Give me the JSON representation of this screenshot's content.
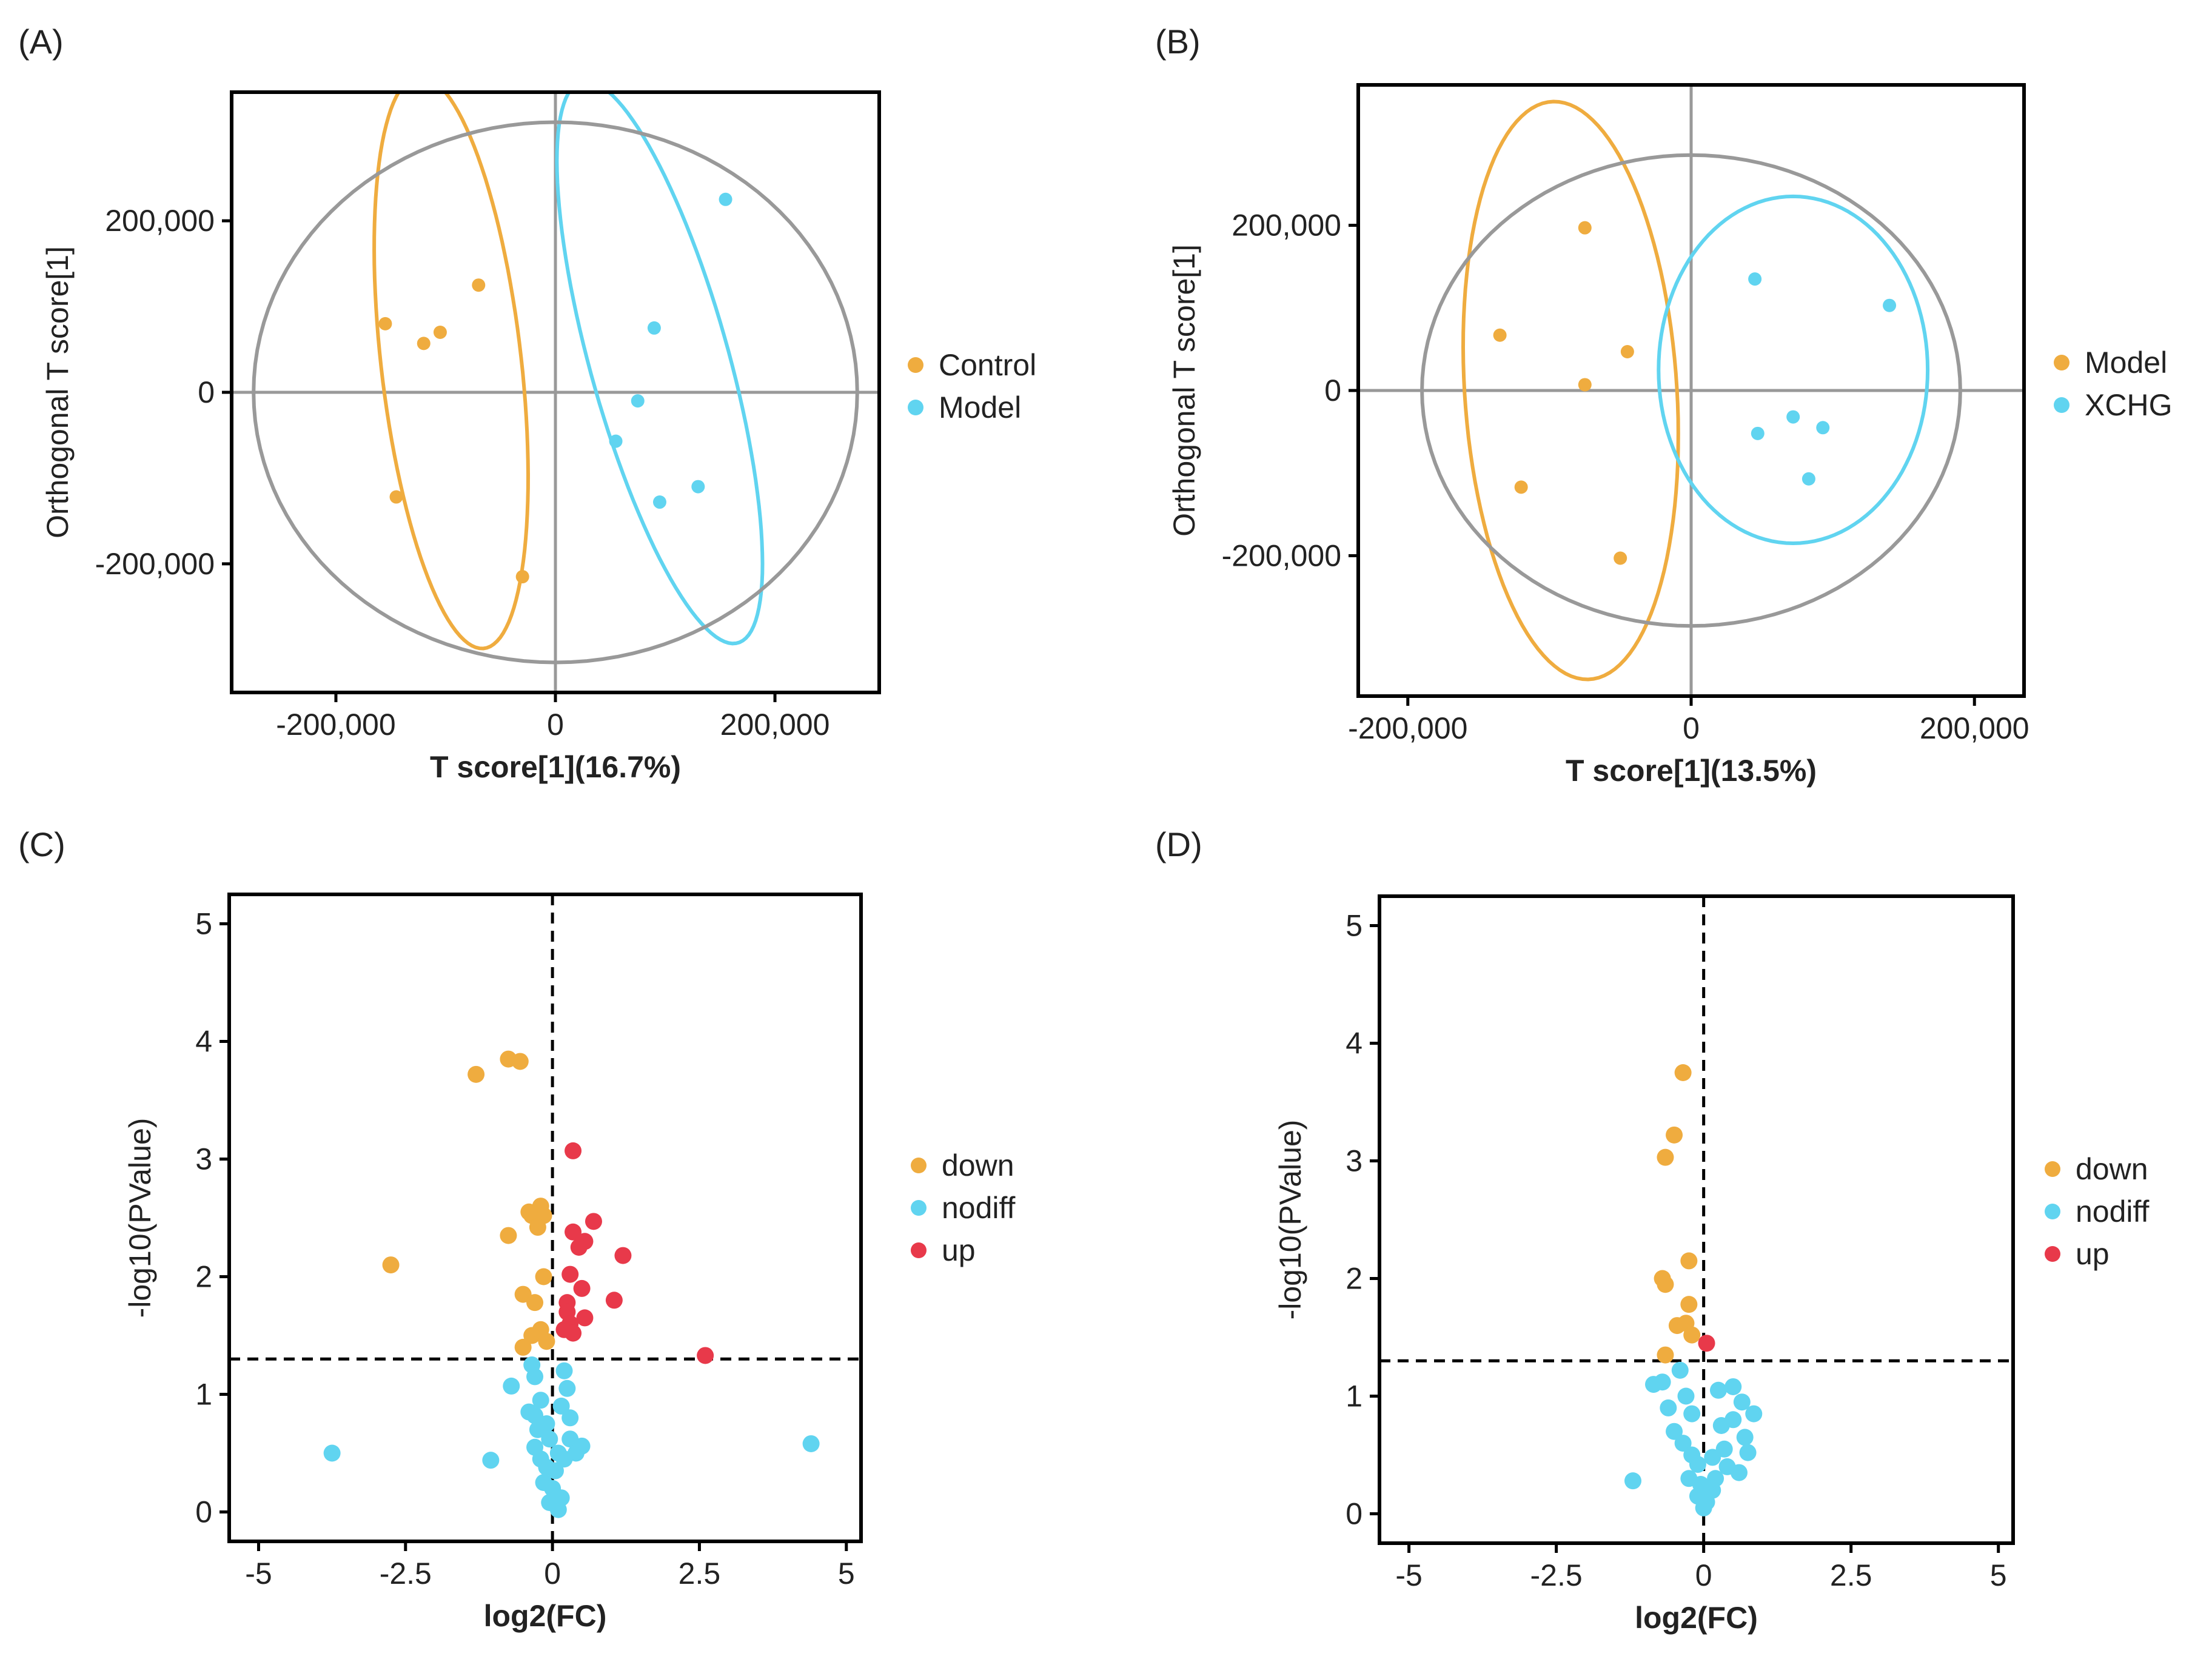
{
  "colors": {
    "orange": "#EFAC3F",
    "cyan": "#60D4F0",
    "red": "#E8394A",
    "gray": "#999999",
    "black": "#000000"
  },
  "chart_data": [
    {
      "panel": "(A)",
      "type": "scatter",
      "xlabel": "T score[1](16.7%)",
      "ylabel": "Orthogonal T score[1]",
      "xlim": [
        -295000,
        295000
      ],
      "ylim": [
        -350000,
        350000
      ],
      "xticks": [
        -200000,
        0,
        200000
      ],
      "xtick_labels": [
        "-200,000",
        "0",
        "200,000"
      ],
      "yticks": [
        -200000,
        0,
        200000
      ],
      "ytick_labels": [
        "-200,000",
        "0",
        "200,000"
      ],
      "legend": [
        "Control",
        "Model"
      ],
      "legend_position": "right",
      "series": [
        {
          "name": "Control",
          "color": "#EFAC3F",
          "points": [
            [
              -155000,
              80000
            ],
            [
              -120000,
              57000
            ],
            [
              -105000,
              70000
            ],
            [
              -70000,
              125000
            ],
            [
              -145000,
              -122000
            ],
            [
              -30000,
              -215000
            ]
          ]
        },
        {
          "name": "Model",
          "color": "#60D4F0",
          "points": [
            [
              155000,
              225000
            ],
            [
              90000,
              75000
            ],
            [
              75000,
              -10000
            ],
            [
              55000,
              -57000
            ],
            [
              95000,
              -128000
            ],
            [
              130000,
              -110000
            ]
          ]
        }
      ],
      "ellipses": [
        {
          "group": "Control",
          "color": "#EFAC3F",
          "cx": -95000,
          "cy": 35000,
          "rx": 335000,
          "ry": 64000,
          "angle": -85
        },
        {
          "group": "Model",
          "color": "#60D4F0",
          "cx": 95000,
          "cy": 35000,
          "rx": 335000,
          "ry": 64000,
          "angle": -78
        },
        {
          "group": "Hotelling T2",
          "color": "#999999",
          "cx": 0,
          "cy": 0,
          "rx": 275000,
          "ry": 315000,
          "angle": 0
        }
      ]
    },
    {
      "panel": "(B)",
      "type": "scatter",
      "xlabel": "T score[1](13.5%)",
      "ylabel": "Orthogonal T score[1]",
      "xlim": [
        -235000,
        235000
      ],
      "ylim": [
        -370000,
        370000
      ],
      "xticks": [
        -200000,
        0,
        200000
      ],
      "xtick_labels": [
        "-200,000",
        "0",
        "200,000"
      ],
      "yticks": [
        -200000,
        0,
        200000
      ],
      "ytick_labels": [
        "-200,000",
        "0",
        "200,000"
      ],
      "legend": [
        "Model",
        "XCHG"
      ],
      "legend_position": "right",
      "series": [
        {
          "name": "Model",
          "color": "#EFAC3F",
          "points": [
            [
              -75000,
              197000
            ],
            [
              -135000,
              67000
            ],
            [
              -45000,
              47000
            ],
            [
              -75000,
              7000
            ],
            [
              -120000,
              -117000
            ],
            [
              -50000,
              -203000
            ]
          ]
        },
        {
          "name": "XCHG",
          "color": "#60D4F0",
          "points": [
            [
              45000,
              135000
            ],
            [
              140000,
              103000
            ],
            [
              47000,
              -52000
            ],
            [
              72000,
              -32000
            ],
            [
              93000,
              -45000
            ],
            [
              83000,
              -107000
            ]
          ]
        }
      ],
      "ellipses": [
        {
          "group": "Model",
          "color": "#EFAC3F",
          "cx": -85000,
          "cy": 0,
          "rx": 350000,
          "ry": 75000,
          "angle": -88
        },
        {
          "group": "XCHG",
          "color": "#60D4F0",
          "cx": 72000,
          "cy": 25000,
          "rx": 95000,
          "ry": 210000,
          "angle": 0
        },
        {
          "group": "Hotelling T2",
          "color": "#999999",
          "cx": 0,
          "cy": 0,
          "rx": 190000,
          "ry": 285000,
          "angle": 0
        }
      ]
    },
    {
      "panel": "(C)",
      "type": "scatter",
      "xlabel": "log2(FC)",
      "ylabel": "-log10(PValue)",
      "xlim": [
        -5.5,
        5.25
      ],
      "ylim": [
        -0.25,
        5.25
      ],
      "xticks": [
        -5,
        -2.5,
        0,
        2.5,
        5
      ],
      "xtick_labels": [
        "-5",
        "-2.5",
        "0",
        "2.5",
        "5"
      ],
      "yticks": [
        0,
        1,
        2,
        3,
        4,
        5
      ],
      "ytick_labels": [
        "0",
        "1",
        "2",
        "3",
        "4",
        "5"
      ],
      "threshold_y": 1.3,
      "threshold_x": 0,
      "legend": [
        "down",
        "nodiff",
        "up"
      ],
      "legend_position": "right",
      "series": [
        {
          "name": "down",
          "color": "#EFAC3F",
          "points": [
            [
              -0.75,
              3.85
            ],
            [
              -0.55,
              3.83
            ],
            [
              -1.3,
              3.72
            ],
            [
              -0.2,
              2.6
            ],
            [
              -0.35,
              2.52
            ],
            [
              -0.15,
              2.52
            ],
            [
              -0.25,
              2.42
            ],
            [
              -0.4,
              2.55
            ],
            [
              -0.75,
              2.35
            ],
            [
              -2.75,
              2.1
            ],
            [
              -0.15,
              2.0
            ],
            [
              -0.5,
              1.85
            ],
            [
              -0.3,
              1.78
            ],
            [
              -0.2,
              1.55
            ],
            [
              -0.35,
              1.5
            ],
            [
              -0.5,
              1.4
            ],
            [
              -0.1,
              1.45
            ]
          ]
        },
        {
          "name": "up",
          "color": "#E8394A",
          "points": [
            [
              0.35,
              3.07
            ],
            [
              0.7,
              2.47
            ],
            [
              0.35,
              2.38
            ],
            [
              0.55,
              2.3
            ],
            [
              0.45,
              2.25
            ],
            [
              1.2,
              2.18
            ],
            [
              0.3,
              2.02
            ],
            [
              0.5,
              1.9
            ],
            [
              1.05,
              1.8
            ],
            [
              0.25,
              1.78
            ],
            [
              0.25,
              1.7
            ],
            [
              0.55,
              1.65
            ],
            [
              0.3,
              1.6
            ],
            [
              0.2,
              1.55
            ],
            [
              0.35,
              1.52
            ],
            [
              2.6,
              1.33
            ]
          ]
        },
        {
          "name": "nodiff",
          "color": "#60D4F0",
          "points": [
            [
              -3.75,
              0.5
            ],
            [
              4.4,
              0.58
            ],
            [
              -1.05,
              0.44
            ],
            [
              -0.7,
              1.07
            ],
            [
              -0.35,
              1.25
            ],
            [
              -0.3,
              1.15
            ],
            [
              0.2,
              1.2
            ],
            [
              0.25,
              1.05
            ],
            [
              -0.2,
              0.95
            ],
            [
              0.15,
              0.9
            ],
            [
              -0.4,
              0.85
            ],
            [
              -0.3,
              0.82
            ],
            [
              -0.1,
              0.75
            ],
            [
              0.3,
              0.8
            ],
            [
              -0.25,
              0.7
            ],
            [
              -0.05,
              0.62
            ],
            [
              0.3,
              0.62
            ],
            [
              0.5,
              0.56
            ],
            [
              0.4,
              0.5
            ],
            [
              -0.3,
              0.55
            ],
            [
              0.1,
              0.5
            ],
            [
              -0.2,
              0.45
            ],
            [
              0.2,
              0.45
            ],
            [
              -0.1,
              0.38
            ],
            [
              0.05,
              0.35
            ],
            [
              -0.15,
              0.25
            ],
            [
              0.0,
              0.2
            ],
            [
              0.15,
              0.12
            ],
            [
              -0.05,
              0.08
            ],
            [
              0.1,
              0.02
            ]
          ]
        }
      ]
    },
    {
      "panel": "(D)",
      "type": "scatter",
      "xlabel": "log2(FC)",
      "ylabel": "-log10(PValue)",
      "xlim": [
        -5.5,
        5.25
      ],
      "ylim": [
        -0.25,
        5.25
      ],
      "xticks": [
        -5,
        -2.5,
        0,
        2.5,
        5
      ],
      "xtick_labels": [
        "-5",
        "-2.5",
        "0",
        "2.5",
        "5"
      ],
      "yticks": [
        0,
        1,
        2,
        3,
        4,
        5
      ],
      "ytick_labels": [
        "0",
        "1",
        "2",
        "3",
        "4",
        "5"
      ],
      "threshold_y": 1.3,
      "threshold_x": 0,
      "legend": [
        "down",
        "nodiff",
        "up"
      ],
      "legend_position": "right",
      "series": [
        {
          "name": "down",
          "color": "#EFAC3F",
          "points": [
            [
              -0.35,
              3.75
            ],
            [
              -0.5,
              3.22
            ],
            [
              -0.65,
              3.03
            ],
            [
              -0.25,
              2.15
            ],
            [
              -0.7,
              2.0
            ],
            [
              -0.65,
              1.95
            ],
            [
              -0.25,
              1.78
            ],
            [
              -0.45,
              1.6
            ],
            [
              -0.3,
              1.62
            ],
            [
              -0.2,
              1.52
            ],
            [
              -0.65,
              1.35
            ]
          ]
        },
        {
          "name": "up",
          "color": "#E8394A",
          "points": [
            [
              0.05,
              1.45
            ]
          ]
        },
        {
          "name": "nodiff",
          "color": "#60D4F0",
          "points": [
            [
              -1.2,
              0.28
            ],
            [
              0.85,
              0.85
            ],
            [
              0.65,
              0.95
            ],
            [
              0.5,
              1.08
            ],
            [
              0.25,
              1.05
            ],
            [
              -0.85,
              1.1
            ],
            [
              -0.7,
              1.12
            ],
            [
              -0.4,
              1.22
            ],
            [
              -0.3,
              1.0
            ],
            [
              -0.6,
              0.9
            ],
            [
              -0.2,
              0.85
            ],
            [
              0.5,
              0.8
            ],
            [
              0.3,
              0.75
            ],
            [
              -0.5,
              0.7
            ],
            [
              0.7,
              0.65
            ],
            [
              -0.35,
              0.6
            ],
            [
              0.35,
              0.55
            ],
            [
              0.75,
              0.52
            ],
            [
              -0.2,
              0.5
            ],
            [
              0.15,
              0.48
            ],
            [
              -0.1,
              0.42
            ],
            [
              0.4,
              0.4
            ],
            [
              0.6,
              0.35
            ],
            [
              -0.25,
              0.3
            ],
            [
              0.2,
              0.3
            ],
            [
              -0.05,
              0.25
            ],
            [
              0.15,
              0.2
            ],
            [
              -0.1,
              0.15
            ],
            [
              0.05,
              0.1
            ],
            [
              0.0,
              0.05
            ]
          ]
        }
      ]
    }
  ]
}
